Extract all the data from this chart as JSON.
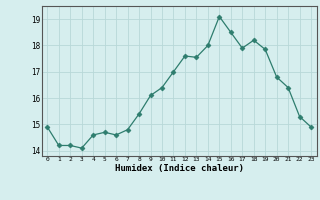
{
  "x": [
    0,
    1,
    2,
    3,
    4,
    5,
    6,
    7,
    8,
    9,
    10,
    11,
    12,
    13,
    14,
    15,
    16,
    17,
    18,
    19,
    20,
    21,
    22,
    23
  ],
  "y": [
    14.9,
    14.2,
    14.2,
    14.1,
    14.6,
    14.7,
    14.6,
    14.8,
    15.4,
    16.1,
    16.4,
    17.0,
    17.6,
    17.55,
    18.0,
    19.1,
    18.5,
    17.9,
    18.2,
    17.85,
    16.8,
    16.4,
    15.3,
    14.9
  ],
  "line_color": "#2e7d6e",
  "marker": "D",
  "marker_size": 2.5,
  "bg_color": "#d6eeee",
  "grid_color": "#b8d8d8",
  "xlabel": "Humidex (Indice chaleur)",
  "xlim": [
    -0.5,
    23.5
  ],
  "ylim": [
    13.8,
    19.5
  ],
  "yticks": [
    14,
    15,
    16,
    17,
    18,
    19
  ],
  "xticks": [
    0,
    1,
    2,
    3,
    4,
    5,
    6,
    7,
    8,
    9,
    10,
    11,
    12,
    13,
    14,
    15,
    16,
    17,
    18,
    19,
    20,
    21,
    22,
    23
  ]
}
